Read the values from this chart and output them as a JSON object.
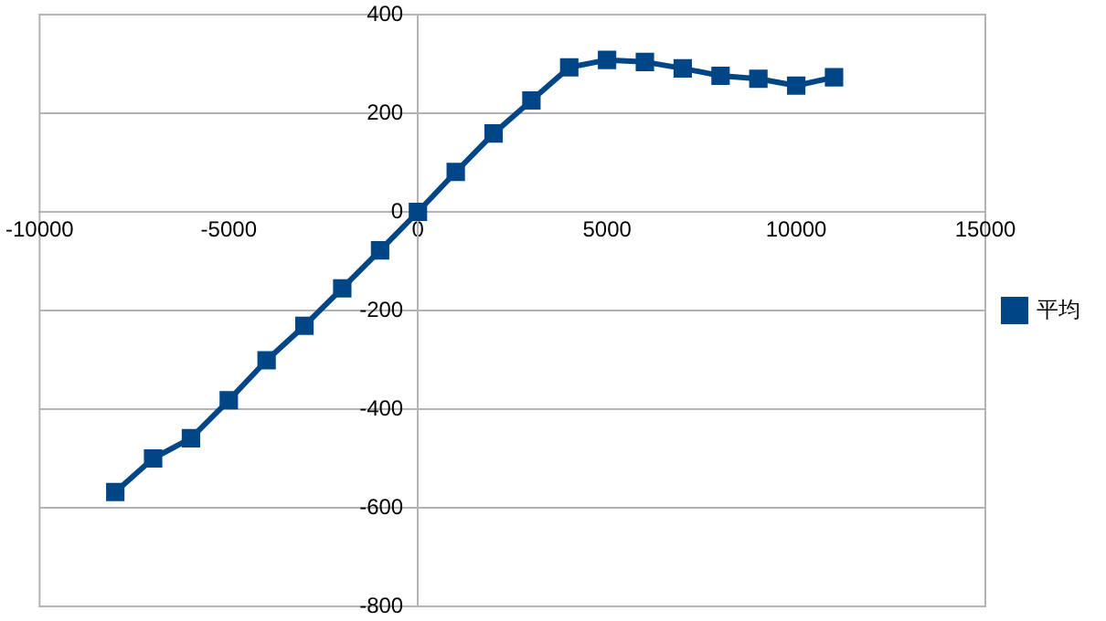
{
  "chart_data": {
    "type": "line",
    "x": [
      -8000,
      -7000,
      -6000,
      -5000,
      -4000,
      -3000,
      -2000,
      -1000,
      0,
      1000,
      2000,
      3000,
      4000,
      5000,
      6000,
      7000,
      8000,
      9000,
      10000,
      11000
    ],
    "series": [
      {
        "name": "平均",
        "color": "#004586",
        "values": [
          -568,
          -500,
          -459,
          -382,
          -301,
          -231,
          -155,
          -78,
          0,
          81,
          159,
          226,
          293,
          308,
          304,
          291,
          276,
          270,
          256,
          273
        ]
      }
    ],
    "xlim": [
      -10000,
      15000
    ],
    "xticks": [
      -10000,
      -5000,
      0,
      5000,
      10000,
      15000
    ],
    "ylim": [
      -800,
      400
    ],
    "yticks": [
      -800,
      -600,
      -400,
      -200,
      0,
      200,
      400
    ],
    "grid": "y",
    "legend": "right",
    "marker": "square",
    "line_style": "solid"
  }
}
